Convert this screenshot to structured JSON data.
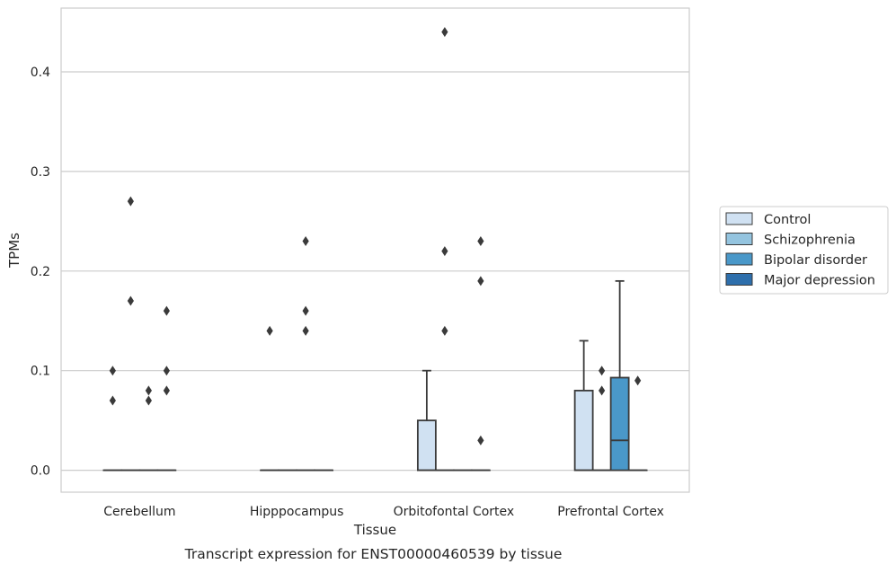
{
  "chart_data": {
    "type": "box",
    "title": "",
    "caption": "Transcript expression for ENST00000460539 by tissue",
    "xlabel": "Tissue",
    "ylabel": "TPMs",
    "ylim": [
      -0.022,
      0.464
    ],
    "yticks": [
      0.0,
      0.1,
      0.2,
      0.3,
      0.4
    ],
    "ytick_labels": [
      "0.0",
      "0.1",
      "0.2",
      "0.3",
      "0.4"
    ],
    "grid": "horizontal",
    "legend_position": "right",
    "categories": [
      "Cerebellum",
      "Hipppocampus",
      "Orbitofontal Cortex",
      "Prefrontal Cortex"
    ],
    "series": [
      {
        "name": "Control",
        "color": "#d0e1f2",
        "boxes": [
          {
            "q1": 0,
            "median": 0,
            "q3": 0,
            "whisker_low": 0,
            "whisker_high": 0,
            "outliers": [
              0.1,
              0.07
            ]
          },
          {
            "q1": 0,
            "median": 0,
            "q3": 0,
            "whisker_low": 0,
            "whisker_high": 0,
            "outliers": [
              0.14
            ]
          },
          {
            "q1": 0,
            "median": 0,
            "q3": 0.05,
            "whisker_low": 0,
            "whisker_high": 0.1,
            "outliers": []
          },
          {
            "q1": 0,
            "median": 0,
            "q3": 0.08,
            "whisker_low": 0,
            "whisker_high": 0.13,
            "outliers": []
          }
        ]
      },
      {
        "name": "Schizophrenia",
        "color": "#94c4df",
        "boxes": [
          {
            "q1": 0,
            "median": 0,
            "q3": 0,
            "whisker_low": 0,
            "whisker_high": 0,
            "outliers": [
              0.27,
              0.17
            ]
          },
          {
            "q1": 0,
            "median": 0,
            "q3": 0,
            "whisker_low": 0,
            "whisker_high": 0,
            "outliers": []
          },
          {
            "q1": 0,
            "median": 0,
            "q3": 0,
            "whisker_low": 0,
            "whisker_high": 0,
            "outliers": [
              0.44,
              0.22,
              0.14
            ]
          },
          {
            "q1": 0,
            "median": 0,
            "q3": 0,
            "whisker_low": 0,
            "whisker_high": 0,
            "outliers": [
              0.1,
              0.08
            ]
          }
        ]
      },
      {
        "name": "Bipolar disorder",
        "color": "#4a98c9",
        "boxes": [
          {
            "q1": 0,
            "median": 0,
            "q3": 0,
            "whisker_low": 0,
            "whisker_high": 0,
            "outliers": [
              0.08,
              0.07
            ]
          },
          {
            "q1": 0,
            "median": 0,
            "q3": 0,
            "whisker_low": 0,
            "whisker_high": 0,
            "outliers": [
              0.23,
              0.16,
              0.14
            ]
          },
          {
            "q1": 0,
            "median": 0,
            "q3": 0,
            "whisker_low": 0,
            "whisker_high": 0,
            "outliers": []
          },
          {
            "q1": 0,
            "median": 0.03,
            "q3": 0.093,
            "whisker_low": 0,
            "whisker_high": 0.19,
            "outliers": []
          }
        ]
      },
      {
        "name": "Major depression",
        "color": "#2e6fac",
        "boxes": [
          {
            "q1": 0,
            "median": 0,
            "q3": 0,
            "whisker_low": 0,
            "whisker_high": 0,
            "outliers": [
              0.16,
              0.1,
              0.08
            ]
          },
          {
            "q1": 0,
            "median": 0,
            "q3": 0,
            "whisker_low": 0,
            "whisker_high": 0,
            "outliers": []
          },
          {
            "q1": 0,
            "median": 0,
            "q3": 0,
            "whisker_low": 0,
            "whisker_high": 0,
            "outliers": [
              0.23,
              0.19,
              0.03
            ]
          },
          {
            "q1": 0,
            "median": 0,
            "q3": 0,
            "whisker_low": 0,
            "whisker_high": 0,
            "outliers": [
              0.09
            ]
          }
        ]
      }
    ]
  }
}
